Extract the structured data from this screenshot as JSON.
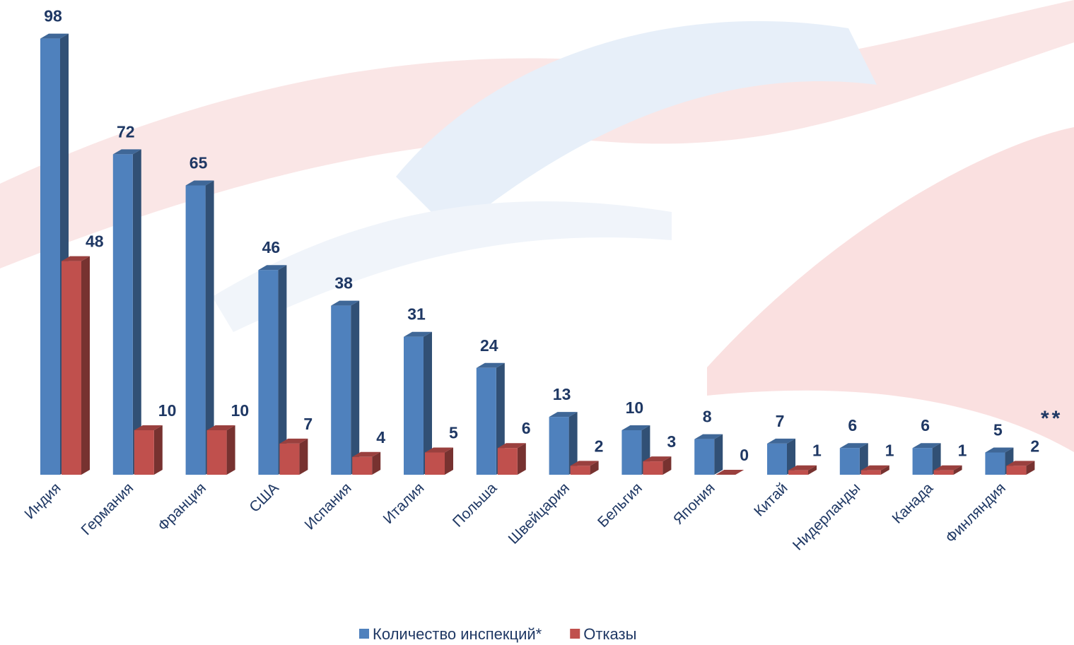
{
  "chart_data": {
    "type": "bar3d",
    "categories": [
      "Индия",
      "Германия",
      "Франция",
      "США",
      "Испания",
      "Италия",
      "Польша",
      "Швейцария",
      "Бельгия",
      "Япония",
      "Китай",
      "Нидерланды",
      "Канада",
      "Финляндия"
    ],
    "series": [
      {
        "name": "Количество инспекций*",
        "color": "#4f81bd",
        "values": [
          98,
          72,
          65,
          46,
          38,
          31,
          24,
          13,
          10,
          8,
          7,
          6,
          6,
          5
        ]
      },
      {
        "name": "Отказы",
        "color": "#c0504d",
        "values": [
          48,
          10,
          10,
          7,
          4,
          5,
          6,
          2,
          3,
          0,
          1,
          1,
          1,
          2
        ]
      }
    ],
    "annotation": "**"
  }
}
